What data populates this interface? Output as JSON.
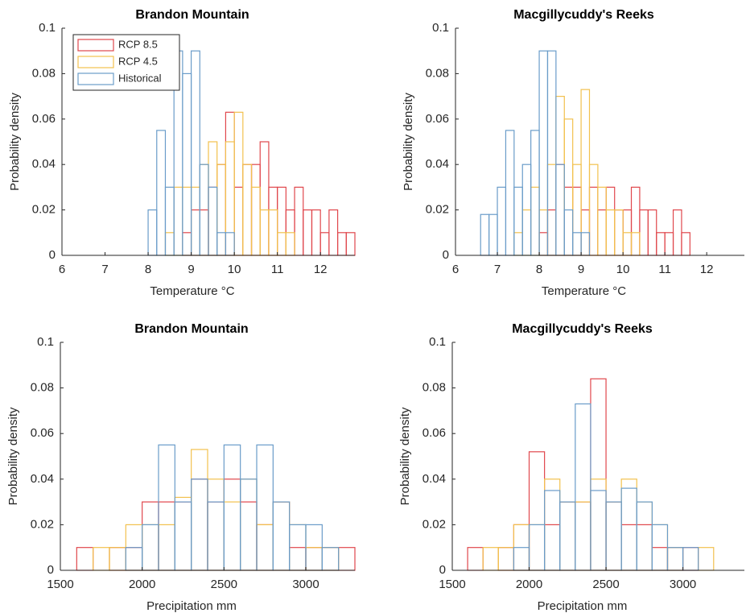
{
  "chart_data": [
    {
      "type": "histogram",
      "title": "Brandon Mountain",
      "xlabel": "Temperature °C",
      "ylabel": "Probability density",
      "xlim": [
        6,
        12.8
      ],
      "xticks": [
        6,
        7,
        8,
        9,
        10,
        11,
        12
      ],
      "ylim": [
        0,
        0.1
      ],
      "yticks": [
        0,
        0.02,
        0.04,
        0.06,
        0.08,
        0.1
      ],
      "legend": "upper left",
      "bins": [
        8.0,
        8.2,
        8.4,
        8.6,
        8.8,
        9.0,
        9.2,
        9.4,
        9.6,
        9.8,
        10.0,
        10.2,
        10.4,
        10.6,
        10.8,
        11.0,
        11.2,
        11.4,
        11.6,
        11.8,
        12.0,
        12.2,
        12.4,
        12.6,
        12.8
      ],
      "series": [
        {
          "name": "RCP 8.5",
          "color": "#e0474c",
          "values": [
            0,
            0,
            0,
            0,
            0.01,
            0.02,
            0.02,
            0.03,
            0.04,
            0.063,
            0.03,
            0.04,
            0.04,
            0.05,
            0.03,
            0.03,
            0.02,
            0.03,
            0.02,
            0.02,
            0.01,
            0.02,
            0.01,
            0.01
          ]
        },
        {
          "name": "RCP 4.5",
          "color": "#f2c14e",
          "values": [
            0,
            0,
            0.01,
            0.03,
            0.03,
            0.03,
            0.04,
            0.05,
            0.04,
            0.05,
            0.063,
            0.04,
            0.03,
            0.02,
            0.02,
            0.01,
            0.01,
            0,
            0,
            0,
            0,
            0,
            0,
            0
          ]
        },
        {
          "name": "Historical",
          "color": "#6a9cc9",
          "values": [
            0.02,
            0.055,
            0.03,
            0.09,
            0.08,
            0.09,
            0.04,
            0.03,
            0.01,
            0.01,
            0,
            0,
            0,
            0,
            0,
            0,
            0,
            0,
            0,
            0,
            0,
            0,
            0,
            0
          ]
        }
      ]
    },
    {
      "type": "histogram",
      "title": "Macgillycuddy's Reeks",
      "xlabel": "Temperature °C",
      "ylabel": "Probability density",
      "xlim": [
        6,
        12.9
      ],
      "xticks": [
        6,
        7,
        8,
        9,
        10,
        11,
        12
      ],
      "ylim": [
        0,
        0.1
      ],
      "yticks": [
        0,
        0.02,
        0.04,
        0.06,
        0.08,
        0.1
      ],
      "bins": [
        6.6,
        6.8,
        7.0,
        7.2,
        7.4,
        7.6,
        7.8,
        8.0,
        8.2,
        8.4,
        8.6,
        8.8,
        9.0,
        9.2,
        9.4,
        9.6,
        9.8,
        10.0,
        10.2,
        10.4,
        10.6,
        10.8,
        11.0,
        11.2,
        11.4,
        11.6,
        11.8
      ],
      "series": [
        {
          "color": "#e0474c",
          "values": [
            0,
            0,
            0,
            0,
            0,
            0,
            0,
            0.01,
            0.02,
            0.04,
            0.03,
            0.03,
            0.02,
            0.03,
            0.02,
            0.03,
            0.02,
            0.02,
            0.03,
            0.02,
            0.02,
            0.01,
            0.01,
            0.02,
            0.01,
            0
          ]
        },
        {
          "color": "#f2c14e",
          "values": [
            0,
            0,
            0,
            0,
            0.01,
            0.02,
            0.03,
            0.02,
            0.04,
            0.07,
            0.06,
            0.04,
            0.073,
            0.04,
            0.03,
            0.02,
            0.02,
            0.01,
            0.01,
            0,
            0,
            0,
            0,
            0,
            0,
            0
          ]
        },
        {
          "color": "#6a9cc9",
          "values": [
            0.018,
            0.018,
            0.03,
            0.055,
            0.03,
            0.04,
            0.055,
            0.09,
            0.09,
            0.04,
            0.02,
            0.01,
            0.01,
            0,
            0,
            0,
            0,
            0,
            0,
            0,
            0,
            0,
            0,
            0,
            0,
            0
          ]
        }
      ]
    },
    {
      "type": "histogram",
      "title": "Brandon Mountain",
      "xlabel": "Precipitation mm",
      "ylabel": "Probability density",
      "xlim": [
        1500,
        3300
      ],
      "xticks": [
        1500,
        2000,
        2500,
        3000
      ],
      "ylim": [
        0,
        0.1
      ],
      "yticks": [
        0,
        0.02,
        0.04,
        0.06,
        0.08,
        0.1
      ],
      "bins": [
        1600,
        1700,
        1800,
        1900,
        2000,
        2100,
        2200,
        2300,
        2400,
        2500,
        2600,
        2700,
        2800,
        2900,
        3000,
        3100,
        3200,
        3300
      ],
      "series": [
        {
          "color": "#e0474c",
          "values": [
            0.01,
            0,
            0.01,
            0.01,
            0.03,
            0.03,
            0.03,
            0.04,
            0.03,
            0.04,
            0.03,
            0.02,
            0.03,
            0.01,
            0.01,
            0.01,
            0.01
          ]
        },
        {
          "color": "#f2c14e",
          "values": [
            0,
            0.01,
            0.01,
            0.02,
            0.02,
            0.02,
            0.032,
            0.053,
            0.04,
            0.03,
            0.04,
            0.02,
            0.03,
            0.02,
            0.01,
            0.01,
            0
          ]
        },
        {
          "color": "#6a9cc9",
          "values": [
            0,
            0,
            0,
            0.01,
            0.02,
            0.055,
            0.03,
            0.04,
            0.03,
            0.055,
            0.04,
            0.055,
            0.03,
            0.02,
            0.02,
            0.01,
            0
          ]
        }
      ]
    },
    {
      "type": "histogram",
      "title": "Macgillycuddy's Reeks",
      "xlabel": "Precipitation mm",
      "ylabel": "Probability density",
      "xlim": [
        1500,
        3400
      ],
      "xticks": [
        1500,
        2000,
        2500,
        3000
      ],
      "ylim": [
        0,
        0.1
      ],
      "yticks": [
        0,
        0.02,
        0.04,
        0.06,
        0.08,
        0.1
      ],
      "bins": [
        1600,
        1700,
        1800,
        1900,
        2000,
        2100,
        2200,
        2300,
        2400,
        2500,
        2600,
        2700,
        2800,
        2900,
        3000,
        3100,
        3200,
        3300
      ],
      "series": [
        {
          "color": "#e0474c",
          "values": [
            0.01,
            0,
            0.01,
            0.02,
            0.052,
            0.02,
            0.03,
            0.03,
            0.084,
            0.03,
            0.02,
            0.02,
            0.01,
            0.01,
            0.01,
            0,
            0
          ]
        },
        {
          "color": "#f2c14e",
          "values": [
            0,
            0.01,
            0.01,
            0.02,
            0.02,
            0.04,
            0.03,
            0.03,
            0.04,
            0.03,
            0.04,
            0.03,
            0.02,
            0.01,
            0,
            0.01,
            0
          ]
        },
        {
          "color": "#6a9cc9",
          "values": [
            0,
            0,
            0,
            0.01,
            0.02,
            0.035,
            0.03,
            0.073,
            0.035,
            0.03,
            0.036,
            0.03,
            0.02,
            0.01,
            0.01,
            0,
            0
          ]
        }
      ]
    }
  ]
}
